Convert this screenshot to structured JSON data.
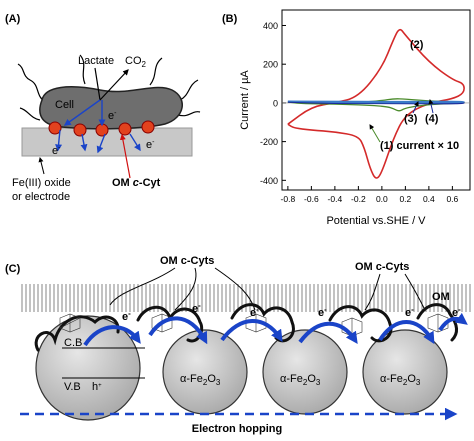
{
  "panel_a": {
    "label": "(A)",
    "lactate": "Lactate",
    "co2_base": "CO",
    "co2_sub": "2",
    "cell": "Cell",
    "electron": "e",
    "electron_sup": "-",
    "substrate_line1": "Fe(III) oxide",
    "substrate_line2": "or electrode",
    "om_prefix": "OM ",
    "om_italic": "c",
    "om_suffix": "-Cyt",
    "colors": {
      "cell": "#6e6e6e",
      "cytochrome": "#e2421e",
      "substrate": "#c8c8c8",
      "arrow": "#1a44c8",
      "om_label": "#d01010"
    }
  },
  "panel_b": {
    "label": "(B)",
    "ylabel": "Current / µA",
    "xlabel": "Potential vs.SHE / V",
    "series_labels": {
      "s2": "(2)",
      "s3": "(3)",
      "s4": "(4)",
      "s1": "(1) current × 10"
    },
    "colors": {
      "s1": "#4a8a2a",
      "s2": "#d42a2a",
      "s3": "#1a2a9a",
      "s4": "#3a7ac8"
    }
  },
  "chart_data": {
    "type": "line",
    "xlabel": "Potential vs.SHE / V",
    "ylabel": "Current / µA",
    "xlim": [
      -0.85,
      0.75
    ],
    "ylim": [
      -450,
      480
    ],
    "xticks": [
      "-0.8",
      "-0.6",
      "-0.4",
      "-0.2",
      "0.0",
      "0.2",
      "0.4",
      "0.6"
    ],
    "yticks": [
      "-400",
      "-200",
      "0",
      "200",
      "400"
    ],
    "grid": false,
    "series": [
      {
        "name": "(2)",
        "color": "#d42a2a",
        "x": [
          -0.8,
          -0.6,
          -0.4,
          -0.2,
          0.0,
          0.1,
          0.15,
          0.2,
          0.4,
          0.6,
          0.7,
          0.7,
          0.6,
          0.4,
          0.2,
          0.1,
          0.0,
          -0.05,
          -0.1,
          -0.15,
          -0.2,
          -0.4,
          -0.6,
          -0.75,
          -0.8
        ],
        "y": [
          -110,
          -20,
          0,
          30,
          180,
          330,
          390,
          350,
          210,
          120,
          100,
          50,
          20,
          0,
          -60,
          -180,
          -360,
          -400,
          -340,
          -230,
          -170,
          -150,
          -140,
          -130,
          -110
        ]
      },
      {
        "name": "(1) current × 10",
        "color": "#4a8a2a",
        "x": [
          -0.8,
          -0.6,
          -0.4,
          -0.2,
          0.0,
          0.1,
          0.2,
          0.4,
          0.6,
          0.7,
          0.7,
          0.6,
          0.4,
          0.2,
          0.15,
          0.1,
          0.05,
          -0.1,
          -0.3,
          -0.5,
          -0.7,
          -0.8
        ],
        "y": [
          5,
          0,
          -2,
          2,
          12,
          22,
          20,
          10,
          5,
          5,
          0,
          -3,
          -8,
          -25,
          -45,
          -30,
          -20,
          -12,
          -8,
          -5,
          -3,
          5
        ]
      },
      {
        "name": "(3)",
        "color": "#1a2a9a",
        "x": [
          -0.8,
          -0.4,
          0.0,
          0.4,
          0.7,
          0.7,
          0.4,
          0.0,
          -0.4,
          -0.8
        ],
        "y": [
          4,
          3,
          2,
          3,
          4,
          -4,
          -4,
          -3,
          -3,
          4
        ]
      },
      {
        "name": "(4)",
        "color": "#3a7ac8",
        "x": [
          -0.8,
          -0.4,
          0.0,
          0.4,
          0.7,
          0.7,
          0.4,
          0.0,
          -0.4,
          -0.8
        ],
        "y": [
          9,
          8,
          7,
          7,
          8,
          2,
          1,
          1,
          2,
          9
        ]
      }
    ]
  },
  "panel_c": {
    "label": "(C)",
    "om_top_left": "OM c-Cyts",
    "om_top_right": "OM c-Cyts",
    "om_right": "OM",
    "electron": "e",
    "electron_sup": "-",
    "cb": "C.B",
    "vb": "V.B",
    "hole": "h",
    "hole_sup": "+",
    "hematite_alpha": "α-Fe",
    "hematite_sub": "2",
    "hematite_o": "O",
    "hematite_sub2": "3",
    "hopping": "Electron hopping",
    "colors": {
      "arrow": "#1a44c8",
      "sphere": "#c4c4c4",
      "dashed": "#1a44c8"
    }
  }
}
